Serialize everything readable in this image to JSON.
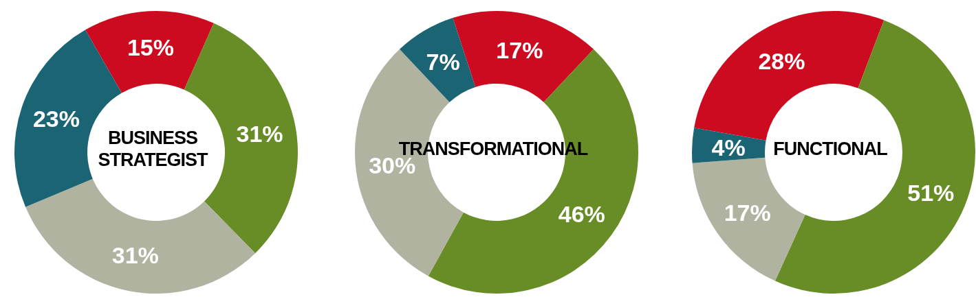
{
  "chart_data": [
    {
      "type": "donut",
      "title": "BUSINESS\nSTRATEGIST",
      "categories": [
        null,
        null,
        null,
        null
      ],
      "values": [
        15,
        31,
        31,
        23
      ],
      "value_labels": [
        "15%",
        "31%",
        "31%",
        "23%"
      ],
      "colors": [
        "#cc0a20",
        "#688d27",
        "#afb3a0",
        "#1b6473"
      ],
      "legend": false
    },
    {
      "type": "donut",
      "title": "TRANSFORMATIONAL",
      "categories": [
        null,
        null,
        null,
        null
      ],
      "values": [
        17,
        46,
        30,
        7
      ],
      "value_labels": [
        "17%",
        "46%",
        "30%",
        "7%"
      ],
      "colors": [
        "#cc0a20",
        "#688d27",
        "#afb3a0",
        "#1b6473"
      ],
      "legend": false
    },
    {
      "type": "donut",
      "title": "FUNCTIONAL",
      "categories": [
        null,
        null,
        null,
        null
      ],
      "values": [
        28,
        51,
        17,
        4
      ],
      "value_labels": [
        "28%",
        "51%",
        "17%",
        "4%"
      ],
      "colors": [
        "#cc0a20",
        "#688d27",
        "#afb3a0",
        "#1b6473"
      ],
      "legend": false
    }
  ]
}
